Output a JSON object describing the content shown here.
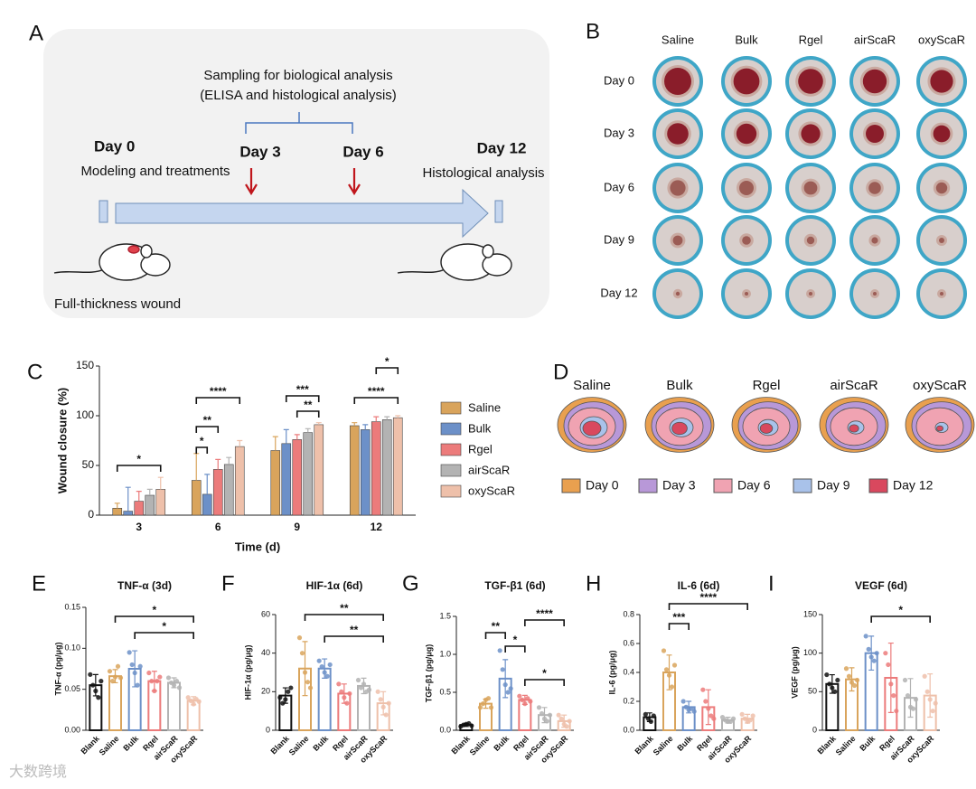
{
  "panel_a": {
    "label": "A",
    "sampling": "Sampling for biological analysis",
    "methods": "(ELISA and histological analysis)",
    "day0": "Day 0",
    "modeling": "Modeling and treatments",
    "day3": "Day 3",
    "day6": "Day 6",
    "day12": "Day 12",
    "histology": "Histological analysis",
    "wound": "Full-thickness wound"
  },
  "panel_b": {
    "label": "B",
    "columns": [
      "Saline",
      "Bulk",
      "Rgel",
      "airScaR",
      "oxyScaR"
    ],
    "rows": [
      "Day 0",
      "Day 3",
      "Day 6",
      "Day 9",
      "Day 12"
    ]
  },
  "panel_d": {
    "label": "D",
    "groups": [
      "Saline",
      "Bulk",
      "Rgel",
      "airScaR",
      "oxyScaR"
    ],
    "legend": [
      {
        "label": "Day 0",
        "color": "#e9a04f"
      },
      {
        "label": "Day 3",
        "color": "#b898d8"
      },
      {
        "label": "Day 6",
        "color": "#f0a3b2"
      },
      {
        "label": "Day 9",
        "color": "#a9c2ea"
      },
      {
        "label": "Day 12",
        "color": "#d9485e"
      }
    ]
  },
  "watermark": "大数跨境",
  "chart_data": [
    {
      "type": "bar",
      "panel": "C",
      "ylabel": "Wound closure (%)",
      "xlabel": "Time (d)",
      "categories": [
        "3",
        "6",
        "9",
        "12"
      ],
      "series": [
        {
          "name": "Saline",
          "color": "#d9a45c",
          "values": [
            7,
            35,
            65,
            90
          ],
          "errors": [
            5,
            27,
            14,
            3
          ]
        },
        {
          "name": "Bulk",
          "color": "#6c90c8",
          "values": [
            4,
            21,
            72,
            86
          ],
          "errors": [
            24,
            20,
            14,
            5
          ]
        },
        {
          "name": "Rgel",
          "color": "#ec7b7b",
          "values": [
            14,
            46,
            76,
            94
          ],
          "errors": [
            10,
            10,
            5,
            5
          ]
        },
        {
          "name": "airScaR",
          "color": "#b3b3b3",
          "values": [
            20,
            51,
            83,
            96
          ],
          "errors": [
            6,
            7,
            4,
            3
          ]
        },
        {
          "name": "oxyScaR",
          "color": "#eec0aa",
          "values": [
            26,
            69,
            91,
            98
          ],
          "errors": [
            12,
            6,
            2,
            2
          ]
        }
      ],
      "ylim": [
        0,
        150
      ],
      "yticks": [
        0,
        50,
        100,
        150
      ],
      "legend": "right",
      "annotations": [
        "*",
        "*",
        "**",
        "****",
        "***",
        "**",
        "****",
        "*"
      ]
    },
    {
      "type": "bar",
      "panel": "E",
      "title": "TNF-α (3d)",
      "ylabel": "TNF-α (pg/μg)",
      "categories": [
        "Blank",
        "Saline",
        "Bulk",
        "Rgel",
        "airScaR",
        "oxyScaR"
      ],
      "colors": [
        "#111111",
        "#d9a45c",
        "#6c90c8",
        "#ec7b7b",
        "#b3b3b3",
        "#eec0aa"
      ],
      "values": [
        0.055,
        0.066,
        0.075,
        0.06,
        0.058,
        0.036
      ],
      "errors": [
        0.013,
        0.008,
        0.022,
        0.012,
        0.006,
        0.005
      ],
      "points": [
        [
          0.068,
          0.055,
          0.048,
          0.04,
          0.06
        ],
        [
          0.072,
          0.06,
          0.065,
          0.078,
          0.064
        ],
        [
          0.095,
          0.08,
          0.07,
          0.055,
          0.078
        ],
        [
          0.07,
          0.06,
          0.048,
          0.06,
          0.065
        ],
        [
          0.064,
          0.058,
          0.055,
          0.06,
          0.052
        ],
        [
          0.04,
          0.036,
          0.032,
          0.038,
          0.035
        ]
      ],
      "ylim": [
        0,
        0.15
      ],
      "yticks": [
        {
          "value": 0,
          "label": "0.00"
        },
        {
          "value": 0.05,
          "label": "0.05"
        },
        {
          "value": 0.1,
          "label": "0.10"
        },
        {
          "value": 0.15,
          "label": "0.15"
        }
      ],
      "annotations": [
        "*",
        "*"
      ]
    },
    {
      "type": "bar",
      "panel": "F",
      "title": "HIF-1α (6d)",
      "ylabel": "HIF-1α (pg/μg)",
      "categories": [
        "Blank",
        "Saline",
        "Bulk",
        "Rgel",
        "airScaR",
        "oxyScaR"
      ],
      "colors": [
        "#111111",
        "#d9a45c",
        "#6c90c8",
        "#ec7b7b",
        "#b3b3b3",
        "#eec0aa"
      ],
      "values": [
        18,
        32,
        32,
        19,
        23,
        14
      ],
      "errors": [
        4,
        14,
        5,
        5,
        4,
        6
      ],
      "points": [
        [
          17,
          14,
          16,
          20,
          22
        ],
        [
          48,
          40,
          30,
          25,
          22
        ],
        [
          36,
          33,
          30,
          28,
          34
        ],
        [
          24,
          20,
          17,
          14,
          19
        ],
        [
          26,
          22,
          24,
          20,
          21
        ],
        [
          20,
          16,
          12,
          8,
          14
        ]
      ],
      "ylim": [
        0,
        60
      ],
      "yticks": [
        0,
        20,
        40,
        60
      ],
      "annotations": [
        "**",
        "**"
      ]
    },
    {
      "type": "bar",
      "panel": "G",
      "title": "TGF-β1 (6d)",
      "ylabel": "TGF-β1 (pg/μg)",
      "categories": [
        "Blank",
        "Saline",
        "Bulk",
        "Rgel",
        "airScaR",
        "oxyScaR"
      ],
      "colors": [
        "#111111",
        "#d9a45c",
        "#6c90c8",
        "#ec7b7b",
        "#b3b3b3",
        "#eec0aa"
      ],
      "values": [
        0.07,
        0.35,
        0.68,
        0.4,
        0.2,
        0.12
      ],
      "errors": [
        0.02,
        0.06,
        0.25,
        0.06,
        0.1,
        0.08
      ],
      "points": [
        [
          0.05,
          0.07,
          0.08,
          0.09,
          0.06
        ],
        [
          0.3,
          0.35,
          0.4,
          0.42,
          0.3
        ],
        [
          1.05,
          0.8,
          0.6,
          0.5,
          0.55
        ],
        [
          0.45,
          0.4,
          0.35,
          0.42,
          0.38
        ],
        [
          0.3,
          0.22,
          0.15,
          0.12,
          0.2
        ],
        [
          0.2,
          0.15,
          0.08,
          0.05,
          0.12
        ]
      ],
      "ylim": [
        0,
        1.5
      ],
      "yticks": [
        {
          "value": 0,
          "label": "0.0"
        },
        {
          "value": 0.5,
          "label": "0.5"
        },
        {
          "value": 1,
          "label": "1.0"
        },
        {
          "value": 1.5,
          "label": "1.5"
        }
      ],
      "annotations": [
        "**",
        "*",
        "****",
        "*"
      ]
    },
    {
      "type": "bar",
      "panel": "H",
      "title": "IL-6 (6d)",
      "ylabel": "IL-6 (pg/μg)",
      "categories": [
        "Blank",
        "Saline",
        "Bulk",
        "Rgel",
        "airScaR",
        "oxyScaR"
      ],
      "colors": [
        "#111111",
        "#d9a45c",
        "#6c90c8",
        "#ec7b7b",
        "#b3b3b3",
        "#eec0aa"
      ],
      "values": [
        0.09,
        0.4,
        0.16,
        0.16,
        0.07,
        0.08
      ],
      "errors": [
        0.03,
        0.12,
        0.04,
        0.12,
        0.02,
        0.03
      ],
      "points": [
        [
          0.11,
          0.08,
          0.06,
          0.1
        ],
        [
          0.55,
          0.42,
          0.38,
          0.3,
          0.45
        ],
        [
          0.2,
          0.16,
          0.14,
          0.15,
          0.13
        ],
        [
          0.28,
          0.2,
          0.15,
          0.1,
          0.08
        ],
        [
          0.09,
          0.07,
          0.06,
          0.06,
          0.08
        ],
        [
          0.11,
          0.08,
          0.06,
          0.07,
          0.1
        ]
      ],
      "ylim": [
        0,
        0.8
      ],
      "yticks": [
        {
          "value": 0,
          "label": "0.0"
        },
        0.2,
        0.4,
        0.6,
        0.8
      ],
      "annotations": [
        "***",
        "****"
      ]
    },
    {
      "type": "bar",
      "panel": "I",
      "title": "VEGF (6d)",
      "ylabel": "VEGF (pg/μg)",
      "categories": [
        "Blank",
        "Saline",
        "Bulk",
        "Rgel",
        "airScaR",
        "oxyScaR"
      ],
      "colors": [
        "#111111",
        "#d9a45c",
        "#6c90c8",
        "#ec7b7b",
        "#b3b3b3",
        "#eec0aa"
      ],
      "values": [
        60,
        66,
        100,
        68,
        42,
        45
      ],
      "errors": [
        12,
        15,
        22,
        45,
        25,
        28
      ],
      "points": [
        [
          72,
          60,
          55,
          50,
          65
        ],
        [
          80,
          70,
          62,
          58,
          65
        ],
        [
          122,
          105,
          95,
          90,
          100
        ],
        [
          100,
          85,
          60,
          45,
          25
        ],
        [
          65,
          45,
          30,
          28,
          40
        ],
        [
          70,
          50,
          40,
          25,
          35
        ]
      ],
      "ylim": [
        0,
        150
      ],
      "yticks": [
        0,
        50,
        100,
        150
      ],
      "annotations": [
        "*"
      ]
    }
  ]
}
